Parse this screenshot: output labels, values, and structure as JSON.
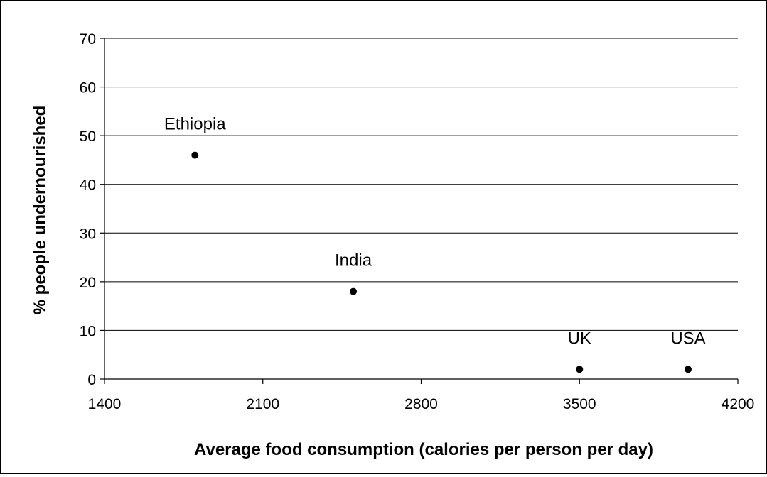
{
  "chart_data": {
    "type": "scatter",
    "title": "",
    "xlabel": "Average food consumption (calories per person per day)",
    "ylabel": "% people undernourished",
    "xlim": [
      1400,
      4200
    ],
    "ylim": [
      0,
      70
    ],
    "xticks": [
      1400,
      2100,
      2800,
      3500,
      4200
    ],
    "yticks": [
      0,
      10,
      20,
      30,
      40,
      50,
      60,
      70
    ],
    "grid": "horizontal",
    "legend": "none",
    "points": [
      {
        "label": "Ethiopia",
        "x": 1800,
        "y": 46
      },
      {
        "label": "India",
        "x": 2500,
        "y": 18
      },
      {
        "label": "UK",
        "x": 3500,
        "y": 2
      },
      {
        "label": "USA",
        "x": 3980,
        "y": 2
      }
    ]
  },
  "colors": {
    "background": "#ffffff",
    "gridline": "#000000",
    "marker": "#000000",
    "text": "#000000"
  }
}
